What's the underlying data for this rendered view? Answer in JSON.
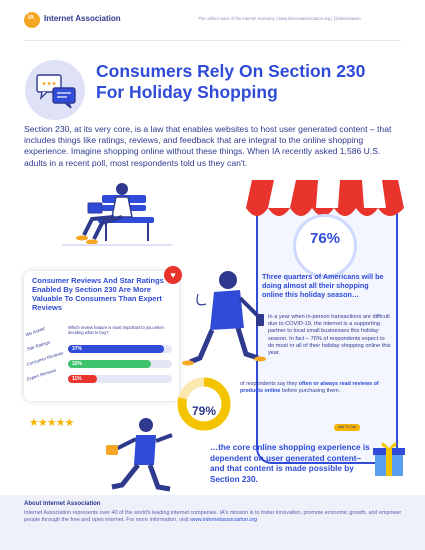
{
  "header": {
    "logo_initials": "IA",
    "brand_name": "Internet Association",
    "tagline": "The unified voice of the internet economy  |  www.internetassociation.org  |  @internetassn"
  },
  "title": "Consumers Rely On Section 230 For Holiday Shopping",
  "intro": "Section 230, at its very core, is a law that enables websites to host user generated content – that includes things like ratings, reviews, and feedback that are integral to the online shopping experience. Imagine shopping online without these things. When IA recently asked 1,586 U.S. adults in a recent poll, most respondents told us they can't.",
  "stat_76": {
    "value": "76%",
    "headline": "Three quarters of Americans will be doing almost all their shopping online this holiday season…",
    "detail": "In a year when in-person transactions are difficult due to COVID-19, the internet is a supporting partner to local small businesses this holiday season. In fact – 76% of respondents expect to do most or all of their holiday shopping online this year."
  },
  "card": {
    "title": "Consumer Reviews And Star Ratings Enabled By Section 230 Are More Valuable To Consumers Than Expert Reviews",
    "we_asked": "We Asked:",
    "question": "Which review feature is most important to you when deciding what to buy?",
    "heart_icon": "heart-icon",
    "rows": [
      {
        "label": "Star Ratings",
        "value_text": "37%",
        "value": 37,
        "color": "#2f4bd8"
      },
      {
        "label": "Consumer Reviews",
        "value_text": "32%",
        "value": 32,
        "color": "#3ec26b"
      },
      {
        "label": "Expert Reviews",
        "value_text": "11%",
        "value": 11,
        "color": "#e9332d"
      }
    ]
  },
  "stat_79": {
    "value": "79%",
    "fraction": 0.79,
    "text_pre": "of respondents say they ",
    "text_bold": "often or always read reviews of products online",
    "text_post": " before purchasing them.",
    "cart_button": "Add To Cart"
  },
  "core_text": "…the core online shopping experience is dependent on user generated content– and that content is made possible by Section 230.",
  "footer": {
    "heading": "About Internet Association",
    "body": "Internet Association represents over 40 of the world's leading internet companies. IA's mission is to foster innovation, promote economic growth, and empower people through the free and open internet. For more information, visit ",
    "url": "www.internetassociation.org"
  },
  "colors": {
    "primary": "#2f4bd8",
    "navy": "#2f3a8f",
    "accent_orange": "#f5a623",
    "awning_red": "#e9332d",
    "star_yellow": "#f5b400",
    "green": "#3ec26b"
  }
}
